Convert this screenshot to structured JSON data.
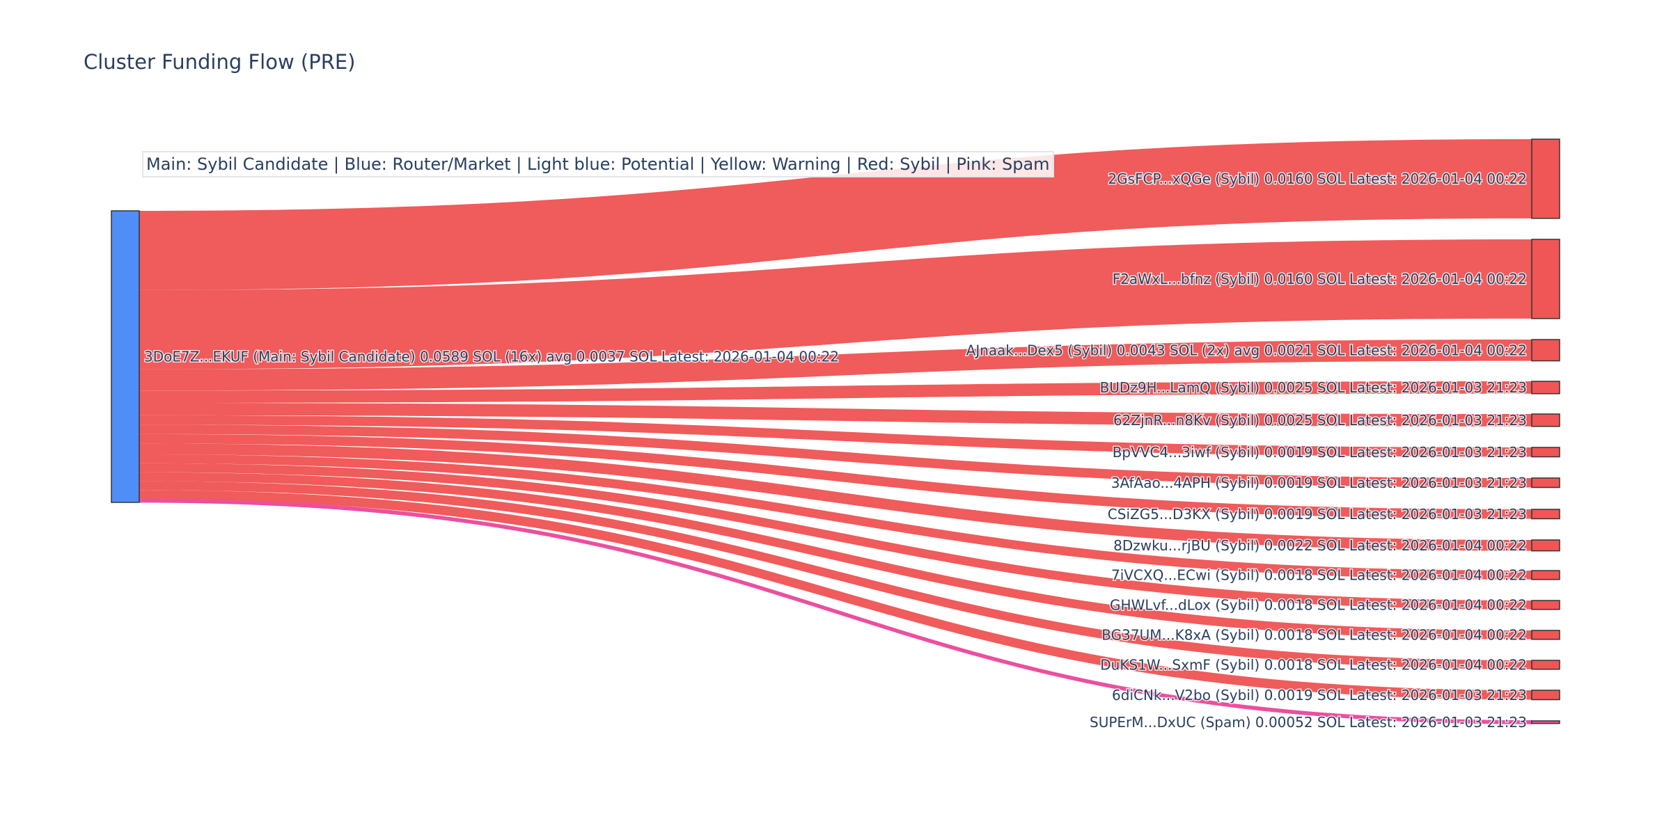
{
  "title": "Cluster Funding Flow (PRE)",
  "legend_text": "Main: Sybil Candidate  |  Blue: Router/Market | Light blue: Potential | Yellow: Warning | Red: Sybil | Pink: Spam",
  "colors": {
    "main": "#4f8ef7",
    "sybil": "#f05656",
    "spam": "#ec4f9e",
    "node_border": "#333333"
  },
  "chart_data": {
    "type": "sankey",
    "title": "Cluster Funding Flow (PRE)",
    "unit": "SOL",
    "source": {
      "label": "3DoE7Z...EKUF (Main: Sybil Candidate) 0.0589 SOL (16x) avg 0.0037 SOL Latest: 2026-01-04 00:22",
      "value": 0.0589,
      "category": "Main"
    },
    "targets": [
      {
        "label": "2GsFCP...xQGe (Sybil) 0.0160 SOL Latest: 2026-01-04 00:22",
        "value": 0.016,
        "category": "Sybil"
      },
      {
        "label": "F2aWxL...bfnz (Sybil) 0.0160 SOL Latest: 2026-01-04 00:22",
        "value": 0.016,
        "category": "Sybil"
      },
      {
        "label": "AJnaak...Dex5 (Sybil) 0.0043 SOL (2x) avg 0.0021 SOL Latest: 2026-01-04 00:22",
        "value": 0.0043,
        "category": "Sybil"
      },
      {
        "label": "BUDz9H...LamQ (Sybil) 0.0025 SOL Latest: 2026-01-03 21:23",
        "value": 0.0025,
        "category": "Sybil"
      },
      {
        "label": "62ZjnR...n8Kv (Sybil) 0.0025 SOL Latest: 2026-01-03 21:23",
        "value": 0.0025,
        "category": "Sybil"
      },
      {
        "label": "BpVVC4...3iwf (Sybil) 0.0019 SOL Latest: 2026-01-03 21:23",
        "value": 0.0019,
        "category": "Sybil"
      },
      {
        "label": "3AfAao...4APH (Sybil) 0.0019 SOL Latest: 2026-01-03 21:23",
        "value": 0.0019,
        "category": "Sybil"
      },
      {
        "label": "CSiZG5...D3KX (Sybil) 0.0019 SOL Latest: 2026-01-03 21:23",
        "value": 0.0019,
        "category": "Sybil"
      },
      {
        "label": "8Dzwku...rjBU (Sybil) 0.0022 SOL Latest: 2026-01-04 00:22",
        "value": 0.0022,
        "category": "Sybil"
      },
      {
        "label": "7iVCXQ...ECwi (Sybil) 0.0018 SOL Latest: 2026-01-04 00:22",
        "value": 0.0018,
        "category": "Sybil"
      },
      {
        "label": "GHWLvf...dLox (Sybil) 0.0018 SOL Latest: 2026-01-04 00:22",
        "value": 0.0018,
        "category": "Sybil"
      },
      {
        "label": "BG37UM...K8xA (Sybil) 0.0018 SOL Latest: 2026-01-04 00:22",
        "value": 0.0018,
        "category": "Sybil"
      },
      {
        "label": "DuKS1W...SxmF (Sybil) 0.0018 SOL Latest: 2026-01-04 00:22",
        "value": 0.0018,
        "category": "Sybil"
      },
      {
        "label": "6diCNk...V2bo (Sybil) 0.0019 SOL Latest: 2026-01-03 21:23",
        "value": 0.0019,
        "category": "Sybil"
      },
      {
        "label": "SUPErM...DxUC (Spam) 0.00052 SOL Latest: 2026-01-03 21:23",
        "value": 0.00052,
        "category": "Spam"
      }
    ]
  }
}
